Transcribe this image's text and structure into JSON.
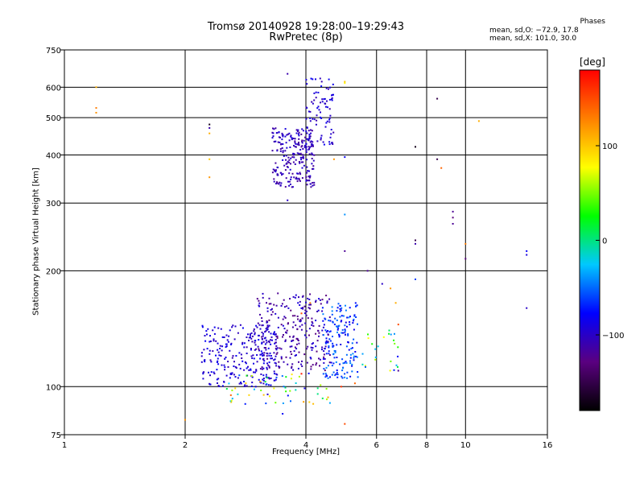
{
  "chart_data": {
    "type": "scatter",
    "title": "Tromsø 20140928 19:28:00–19:29:43",
    "subtitle": "RwPretec (8p)",
    "xlabel": "Frequency [MHz]",
    "ylabel": "Stationary phase Virtual Height [km]",
    "x_scale": "log",
    "y_scale": "log",
    "xlim": [
      1,
      16
    ],
    "ylim": [
      75,
      750
    ],
    "x_ticks": [
      1,
      2,
      4,
      6,
      8,
      10,
      16
    ],
    "y_ticks": [
      75,
      100,
      200,
      300,
      400,
      500,
      600,
      750
    ],
    "grid": true,
    "phase_stats": {
      "header": "Phases",
      "line1": "mean, sd,O: −72.9, 17.8",
      "line2": "mean, sd,X: 101.0, 30.0"
    },
    "colorbar": {
      "unit": "[deg]",
      "range": [
        -180,
        180
      ],
      "ticks": [
        100,
        0,
        -100
      ],
      "colors": [
        "#000000",
        "#5a0080",
        "#0000ff",
        "#00c8ff",
        "#00ff00",
        "#ffff00",
        "#ff8000",
        "#ff0000"
      ]
    },
    "series": [
      {
        "clusters": [
          {
            "x": [
              3.3,
              4.2
            ],
            "y": [
              330,
              470
            ],
            "n": 240,
            "phase": [
              -120,
              -90
            ]
          },
          {
            "x": [
              4.0,
              4.7
            ],
            "y": [
              420,
              640
            ],
            "n": 90,
            "phase": [
              -110,
              -80
            ]
          },
          {
            "x": [
              2.2,
              3.4
            ],
            "y": [
              100,
              145
            ],
            "n": 260,
            "phase": [
              -110,
              -80
            ]
          },
          {
            "x": [
              3.0,
              4.6
            ],
            "y": [
              110,
              175
            ],
            "n": 260,
            "phase": [
              -130,
              -90
            ]
          },
          {
            "x": [
              4.4,
              5.4
            ],
            "y": [
              105,
              165
            ],
            "n": 170,
            "phase": [
              -90,
              -40
            ]
          },
          {
            "x": [
              2.5,
              4.7
            ],
            "y": [
              90,
              110
            ],
            "n": 60,
            "phase": [
              -100,
              120
            ]
          },
          {
            "x": [
              5.5,
              6.8
            ],
            "y": [
              110,
              140
            ],
            "n": 25,
            "phase": [
              -80,
              80
            ]
          }
        ],
        "points": [
          {
            "x": 1.2,
            "y": 600,
            "phase": 110
          },
          {
            "x": 1.2,
            "y": 530,
            "phase": 130
          },
          {
            "x": 1.2,
            "y": 515,
            "phase": 120
          },
          {
            "x": 2.3,
            "y": 480,
            "phase": -170
          },
          {
            "x": 2.3,
            "y": 470,
            "phase": -110
          },
          {
            "x": 2.3,
            "y": 455,
            "phase": 110
          },
          {
            "x": 2.3,
            "y": 390,
            "phase": 100
          },
          {
            "x": 2.3,
            "y": 350,
            "phase": 120
          },
          {
            "x": 3.6,
            "y": 650,
            "phase": -110
          },
          {
            "x": 3.6,
            "y": 305,
            "phase": -100
          },
          {
            "x": 5.0,
            "y": 620,
            "phase": 100
          },
          {
            "x": 5.0,
            "y": 615,
            "phase": 80
          },
          {
            "x": 5.0,
            "y": 395,
            "phase": -80
          },
          {
            "x": 5.0,
            "y": 280,
            "phase": -40
          },
          {
            "x": 5.0,
            "y": 225,
            "phase": -120
          },
          {
            "x": 4.7,
            "y": 390,
            "phase": 120
          },
          {
            "x": 5.7,
            "y": 200,
            "phase": -120
          },
          {
            "x": 7.5,
            "y": 420,
            "phase": -170
          },
          {
            "x": 8.5,
            "y": 560,
            "phase": -150
          },
          {
            "x": 8.5,
            "y": 390,
            "phase": -150
          },
          {
            "x": 8.7,
            "y": 370,
            "phase": 140
          },
          {
            "x": 9.3,
            "y": 285,
            "phase": -120
          },
          {
            "x": 9.3,
            "y": 275,
            "phase": -130
          },
          {
            "x": 9.3,
            "y": 265,
            "phase": -120
          },
          {
            "x": 7.5,
            "y": 240,
            "phase": -150
          },
          {
            "x": 7.5,
            "y": 235,
            "phase": -110
          },
          {
            "x": 7.5,
            "y": 190,
            "phase": -60
          },
          {
            "x": 10.0,
            "y": 215,
            "phase": -130
          },
          {
            "x": 10.0,
            "y": 235,
            "phase": 130
          },
          {
            "x": 10.8,
            "y": 490,
            "phase": 110
          },
          {
            "x": 14.2,
            "y": 225,
            "phase": -80
          },
          {
            "x": 14.2,
            "y": 220,
            "phase": -90
          },
          {
            "x": 14.2,
            "y": 160,
            "phase": -100
          },
          {
            "x": 6.2,
            "y": 185,
            "phase": -100
          },
          {
            "x": 6.5,
            "y": 180,
            "phase": 120
          },
          {
            "x": 6.7,
            "y": 165,
            "phase": 110
          },
          {
            "x": 6.8,
            "y": 145,
            "phase": 150
          },
          {
            "x": 6.8,
            "y": 110,
            "phase": -120
          },
          {
            "x": 5.0,
            "y": 80,
            "phase": 150
          },
          {
            "x": 3.5,
            "y": 85,
            "phase": -80
          },
          {
            "x": 2.0,
            "y": 82,
            "phase": 120
          },
          {
            "x": 2.6,
            "y": 95,
            "phase": 140
          },
          {
            "x": 3.0,
            "y": 100,
            "phase": -90
          },
          {
            "x": 3.9,
            "y": 108,
            "phase": 170
          },
          {
            "x": 4.1,
            "y": 165,
            "phase": 130
          },
          {
            "x": 3.9,
            "y": 155,
            "phase": 150
          },
          {
            "x": 4.9,
            "y": 100,
            "phase": 160
          },
          {
            "x": 5.3,
            "y": 102,
            "phase": 140
          }
        ]
      }
    ]
  }
}
